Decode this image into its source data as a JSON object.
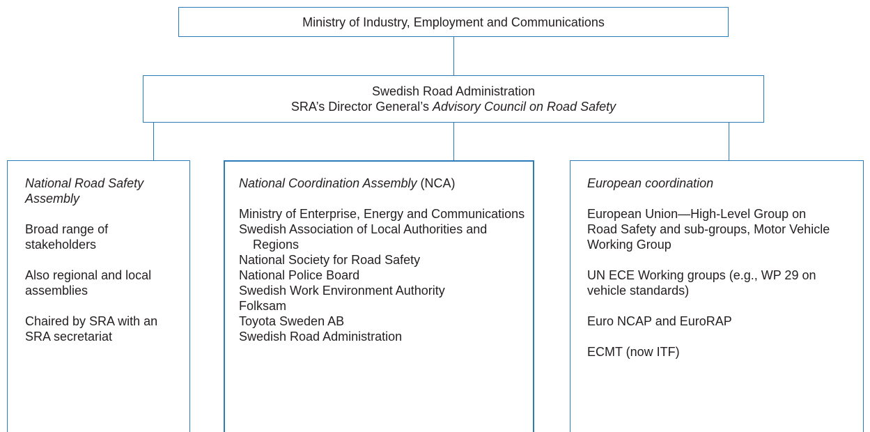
{
  "top": {
    "label": "Ministry of Industry, Employment and Communications"
  },
  "sra": {
    "line1": "Swedish Road Administration",
    "line2_prefix": "SRA’s Director General’s ",
    "line2_italic": "Advisory Council on Road Safety"
  },
  "columns": [
    {
      "title": "National Road Safety Assembly",
      "paragraphs": [
        "Broad range of stakeholders",
        "Also regional and local assemblies",
        "Chaired by SRA with an SRA secretariat"
      ]
    },
    {
      "title": "National Coordination Assembly",
      "title_suffix": " (NCA)",
      "items": [
        "Ministry of Enterprise, Energy and Communications",
        "Swedish Association of Local Authorities and Regions",
        "National Society for Road Safety",
        "National Police Board",
        "Swedish Work Environment Authority",
        "Folksam",
        "Toyota Sweden AB",
        "Swedish Road Administration"
      ]
    },
    {
      "title": "European coordination",
      "paragraphs": [
        "European Union—High-Level Group on Road Safety and sub-groups, Motor Vehicle Working Group",
        "UN ECE Working groups (e.g., WP 29 on vehicle standards)",
        "Euro NCAP and EuroRAP",
        "ECMT (now ITF)"
      ]
    }
  ]
}
